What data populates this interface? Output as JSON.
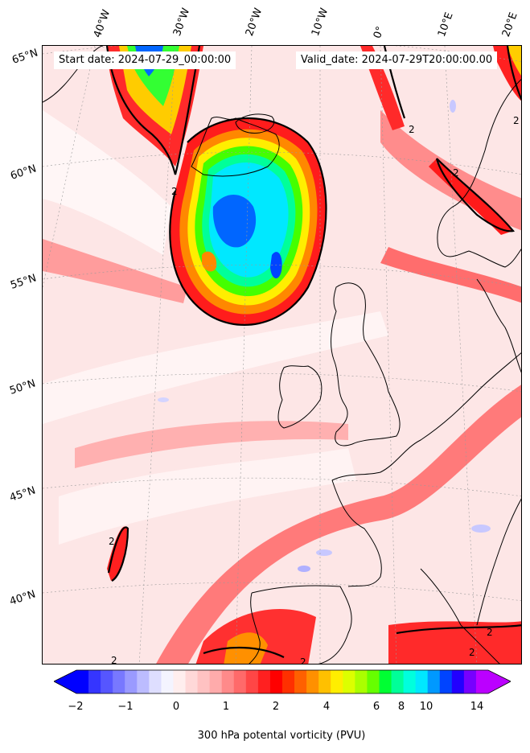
{
  "header": {
    "start_label": "Start date: 2024-07-29_00:00:00",
    "valid_label": "Valid_date: 2024-07-29T20:00:00.00"
  },
  "longitude_labels": [
    "40°W",
    "30°W",
    "20°W",
    "10°W",
    "0°",
    "10°E",
    "20°E"
  ],
  "latitude_labels": [
    "65°N",
    "60°N",
    "55°N",
    "50°N",
    "45°N",
    "40°N"
  ],
  "contour_label": "2",
  "colorbar": {
    "title": "300 hPa potental vorticity (PVU)",
    "ticks": [
      "−2",
      "−1",
      "0",
      "1",
      "2",
      "4",
      "6",
      "8",
      "10",
      "14"
    ],
    "colors": [
      "#0000ff",
      "#3535ff",
      "#5656ff",
      "#7878ff",
      "#9a9aff",
      "#bcbcff",
      "#dedeff",
      "#f4f4ff",
      "#ffeeee",
      "#ffd8d8",
      "#ffc2c2",
      "#ffabab",
      "#ff8a8a",
      "#ff6a6a",
      "#ff4646",
      "#ff2020",
      "#ff0000",
      "#ff3000",
      "#ff6000",
      "#ff9000",
      "#ffc000",
      "#ffee00",
      "#dcff00",
      "#aaff00",
      "#66ff00",
      "#00ff33",
      "#00ff99",
      "#00ffdd",
      "#00e8ff",
      "#0099ff",
      "#0044ff",
      "#2200ff",
      "#7700ff",
      "#bb00ff"
    ]
  }
}
